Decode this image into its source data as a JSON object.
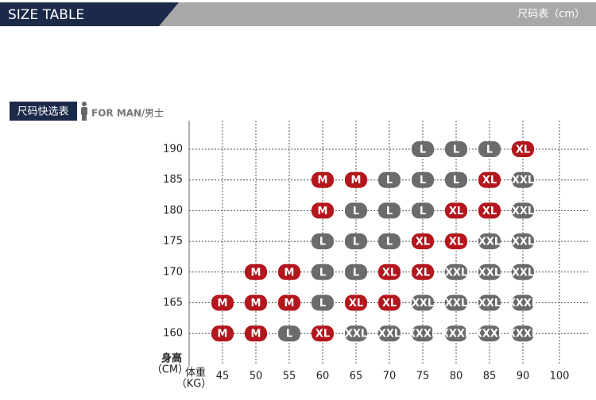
{
  "header": {
    "title": "SIZE TABLE",
    "subtitle": "尺码表（cm）"
  },
  "section": {
    "label": "尺码快选表",
    "audience": "FOR MAN",
    "audience_cn": "/男士"
  },
  "axes": {
    "y_label": "身高",
    "y_unit": "（CM）",
    "x_label": "体重",
    "x_unit": "（KG）"
  },
  "colors": {
    "M": "#b3161c",
    "XL": "#b3161c",
    "L": "#6b6b6b",
    "XXL": "#6b6b6b",
    "XXXL": "#6b6b6b"
  },
  "table": {
    "columns": [
      45,
      50,
      55,
      60,
      65,
      70,
      75,
      80,
      85,
      90,
      100
    ],
    "rows": [
      {
        "height": 190,
        "cells": [
          null,
          null,
          null,
          null,
          null,
          null,
          "L",
          "L",
          "L",
          "XL"
        ]
      },
      {
        "height": 185,
        "cells": [
          null,
          null,
          null,
          "M",
          "M",
          "L",
          "L",
          "L",
          "XL",
          "XXL"
        ]
      },
      {
        "height": 180,
        "cells": [
          null,
          null,
          null,
          "M",
          "L",
          "L",
          "L",
          "XL",
          "XL",
          "XXL"
        ]
      },
      {
        "height": 175,
        "cells": [
          null,
          null,
          null,
          "L",
          "L",
          "L",
          "XL",
          "XL",
          "XXL",
          "XXL"
        ]
      },
      {
        "height": 170,
        "cells": [
          null,
          "M",
          "M",
          "L",
          "L",
          "XL",
          "XL",
          "XXL",
          "XXL",
          "XXL"
        ]
      },
      {
        "height": 165,
        "cells": [
          "M",
          "M",
          "M",
          "L",
          "XL",
          "XL",
          "XXL",
          "XXL",
          "XXL",
          "XXXL"
        ]
      },
      {
        "height": 160,
        "cells": [
          "M",
          "M",
          "L",
          "XL",
          "XXL",
          "XXL",
          "XXXL",
          "XXXL",
          "XXXL",
          "XXXL"
        ]
      }
    ]
  }
}
